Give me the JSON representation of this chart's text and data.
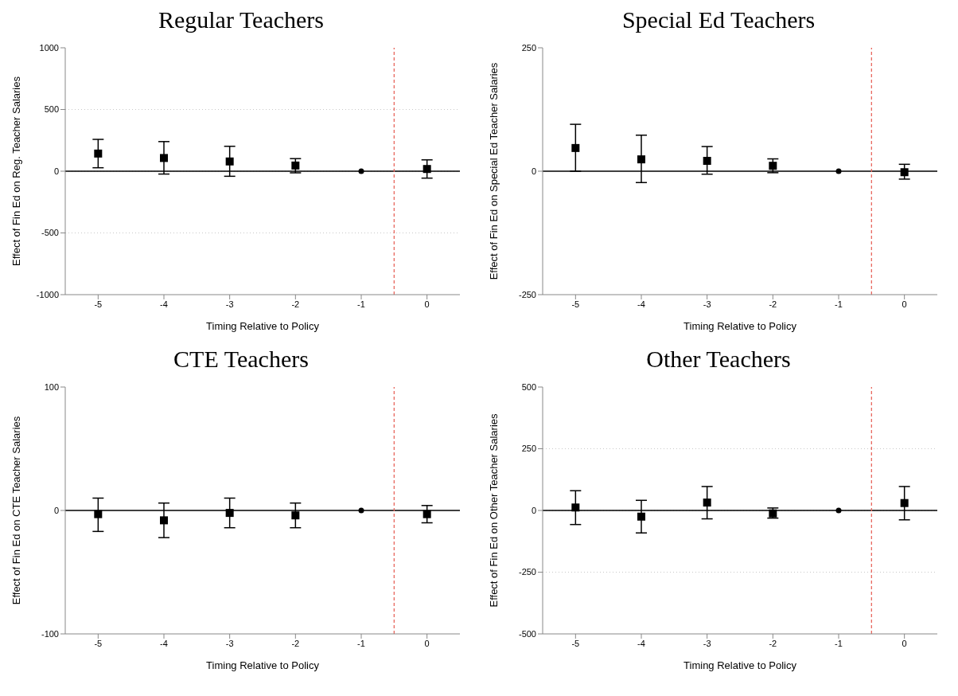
{
  "chart_data": [
    {
      "type": "scatter",
      "title": "Regular Teachers",
      "xlabel": "Timing Relative to Policy",
      "ylabel": "Effect of Fin Ed on Reg. Teacher Salaries",
      "xlim": [
        -5.5,
        0.5
      ],
      "xticks": [
        -5,
        -4,
        -3,
        -2,
        -1,
        0
      ],
      "ylim": [
        -1000,
        1000
      ],
      "yticks": [
        -1000,
        -500,
        0,
        500,
        1000
      ],
      "grid": "y",
      "ref_lines": [
        {
          "axis": "y",
          "value": 0,
          "color": "#000000",
          "line_style": "solid"
        },
        {
          "axis": "x",
          "value": -0.5,
          "color": "#e8685f",
          "line_style": "dashed"
        }
      ],
      "series": [
        {
          "x": [
            -5,
            -4,
            -3,
            -2,
            0
          ],
          "values": [
            143,
            107,
            79,
            46,
            18
          ],
          "color": "#000000",
          "marker": "square",
          "errors": [
            [
              28,
              258
            ],
            [
              -23,
              240
            ],
            [
              -41,
              202
            ],
            [
              -13,
              102
            ],
            [
              -56,
              92
            ]
          ]
        },
        {
          "x": [
            -1
          ],
          "values": [
            0
          ],
          "color": "#000000",
          "marker": "circle"
        }
      ]
    },
    {
      "type": "scatter",
      "title": "Special Ed Teachers",
      "xlabel": "Timing Relative to Policy",
      "ylabel": "Effect of Fin Ed on Special Ed Teacher Salaries",
      "xlim": [
        -5.5,
        0.5
      ],
      "xticks": [
        -5,
        -4,
        -3,
        -2,
        -1,
        0
      ],
      "ylim": [
        -250,
        250
      ],
      "yticks": [
        -250,
        0,
        250
      ],
      "ref_lines": [
        {
          "axis": "y",
          "value": 0,
          "color": "#000000",
          "line_style": "solid"
        },
        {
          "axis": "x",
          "value": -0.5,
          "color": "#e8685f",
          "line_style": "dashed"
        }
      ],
      "series": [
        {
          "x": [
            -5,
            -4,
            -3,
            -2,
            0
          ],
          "values": [
            47,
            24,
            21,
            11,
            -2
          ],
          "color": "#000000",
          "marker": "square",
          "errors": [
            [
              0,
              95
            ],
            [
              -23,
              73
            ],
            [
              -6,
              50
            ],
            [
              -3,
              25
            ],
            [
              -16,
              14
            ]
          ]
        },
        {
          "x": [
            -1
          ],
          "values": [
            0
          ],
          "color": "#000000",
          "marker": "circle"
        }
      ]
    },
    {
      "type": "scatter",
      "title": "CTE Teachers",
      "xlabel": "Timing Relative to Policy",
      "ylabel": "Effect of Fin Ed on CTE Teacher Salaries",
      "xlim": [
        -5.5,
        0.5
      ],
      "xticks": [
        -5,
        -4,
        -3,
        -2,
        -1,
        0
      ],
      "ylim": [
        -100,
        100
      ],
      "yticks": [
        -100,
        0,
        100
      ],
      "ref_lines": [
        {
          "axis": "y",
          "value": 0,
          "color": "#000000",
          "line_style": "solid"
        },
        {
          "axis": "x",
          "value": -0.5,
          "color": "#e8685f",
          "line_style": "dashed"
        }
      ],
      "series": [
        {
          "x": [
            -5,
            -4,
            -3,
            -2,
            0
          ],
          "values": [
            -3,
            -8,
            -2,
            -4,
            -3
          ],
          "color": "#000000",
          "marker": "square",
          "errors": [
            [
              -17,
              10
            ],
            [
              -22,
              6
            ],
            [
              -14,
              10
            ],
            [
              -14,
              6
            ],
            [
              -10,
              4
            ]
          ]
        },
        {
          "x": [
            -1
          ],
          "values": [
            0
          ],
          "color": "#000000",
          "marker": "circle"
        }
      ]
    },
    {
      "type": "scatter",
      "title": "Other Teachers",
      "xlabel": "Timing Relative to Policy",
      "ylabel": "Effect of Fin Ed on Other Teacher Salaries",
      "xlim": [
        -5.5,
        0.5
      ],
      "xticks": [
        -5,
        -4,
        -3,
        -2,
        -1,
        0
      ],
      "ylim": [
        -500,
        500
      ],
      "yticks": [
        -500,
        -250,
        0,
        250,
        500
      ],
      "grid": "y",
      "ref_lines": [
        {
          "axis": "y",
          "value": 0,
          "color": "#000000",
          "line_style": "solid"
        },
        {
          "axis": "x",
          "value": -0.5,
          "color": "#e8685f",
          "line_style": "dashed"
        }
      ],
      "series": [
        {
          "x": [
            -5,
            -4,
            -3,
            -2,
            0
          ],
          "values": [
            12,
            -25,
            32,
            -12,
            30
          ],
          "color": "#000000",
          "marker": "square",
          "errors": [
            [
              -57,
              80
            ],
            [
              -91,
              41
            ],
            [
              -34,
              97
            ],
            [
              -31,
              10
            ],
            [
              -38,
              97
            ]
          ]
        },
        {
          "x": [
            -1
          ],
          "values": [
            0
          ],
          "color": "#000000",
          "marker": "circle"
        }
      ]
    }
  ]
}
